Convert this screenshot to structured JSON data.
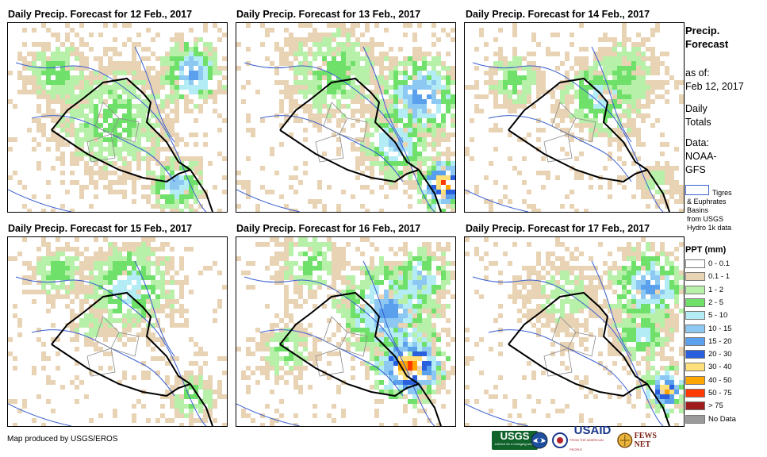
{
  "panels": [
    {
      "title": "Daily Precip. Forecast for 12 Feb., 2017"
    },
    {
      "title": "Daily Precip. Forecast for 13 Feb., 2017"
    },
    {
      "title": "Daily Precip. Forecast for 14 Feb., 2017"
    },
    {
      "title": "Daily Precip. Forecast for 15 Feb., 2017"
    },
    {
      "title": "Daily Precip. Forecast for 16 Feb., 2017"
    },
    {
      "title": "Daily Precip. Forecast for 17 Feb., 2017"
    }
  ],
  "sidebar": {
    "heading_line1": "Precip.",
    "heading_line2": "Forecast",
    "asof_label": "as of:",
    "asof_date": "Feb 12, 2017",
    "daily_line1": "Daily",
    "daily_line2": "Totals",
    "data_line1": "Data:",
    "data_line2": "NOAA-",
    "data_line3": "GFS",
    "basin_line1": "Tigres",
    "basin_line2": "& Euphrates",
    "basin_line3": "Basins",
    "basin_line4": "from USGS",
    "basin_line5": "Hydro 1k data"
  },
  "legend": {
    "title": "PPT (mm)",
    "items": [
      {
        "label": "0 - 0.1",
        "color": "#ffffff"
      },
      {
        "label": "0.1 - 1",
        "color": "#e8d3b4"
      },
      {
        "label": "1 - 2",
        "color": "#b7f0a8"
      },
      {
        "label": "2 - 5",
        "color": "#6fe06a"
      },
      {
        "label": "5 - 10",
        "color": "#b4ecf5"
      },
      {
        "label": "10 - 15",
        "color": "#8cc8f2"
      },
      {
        "label": "15 - 20",
        "color": "#5aa0ec"
      },
      {
        "label": "20 - 30",
        "color": "#2a60dd"
      },
      {
        "label": "30 - 40",
        "color": "#ffe07a"
      },
      {
        "label": "40 - 50",
        "color": "#ffa500"
      },
      {
        "label": "50 - 75",
        "color": "#ff3a00"
      },
      {
        "label": "> 75",
        "color": "#a01c1c"
      },
      {
        "label": "No Data",
        "color": "#9a9a9a"
      }
    ]
  },
  "footer": {
    "credit": "Map produced by USGS/EROS"
  },
  "logos": {
    "usgs": "USGS",
    "usgs_tag": "science for a changing world",
    "usaid": "USAID",
    "usaid_tag": "FROM THE AMERICAN PEOPLE",
    "fews": "FEWS NET"
  }
}
